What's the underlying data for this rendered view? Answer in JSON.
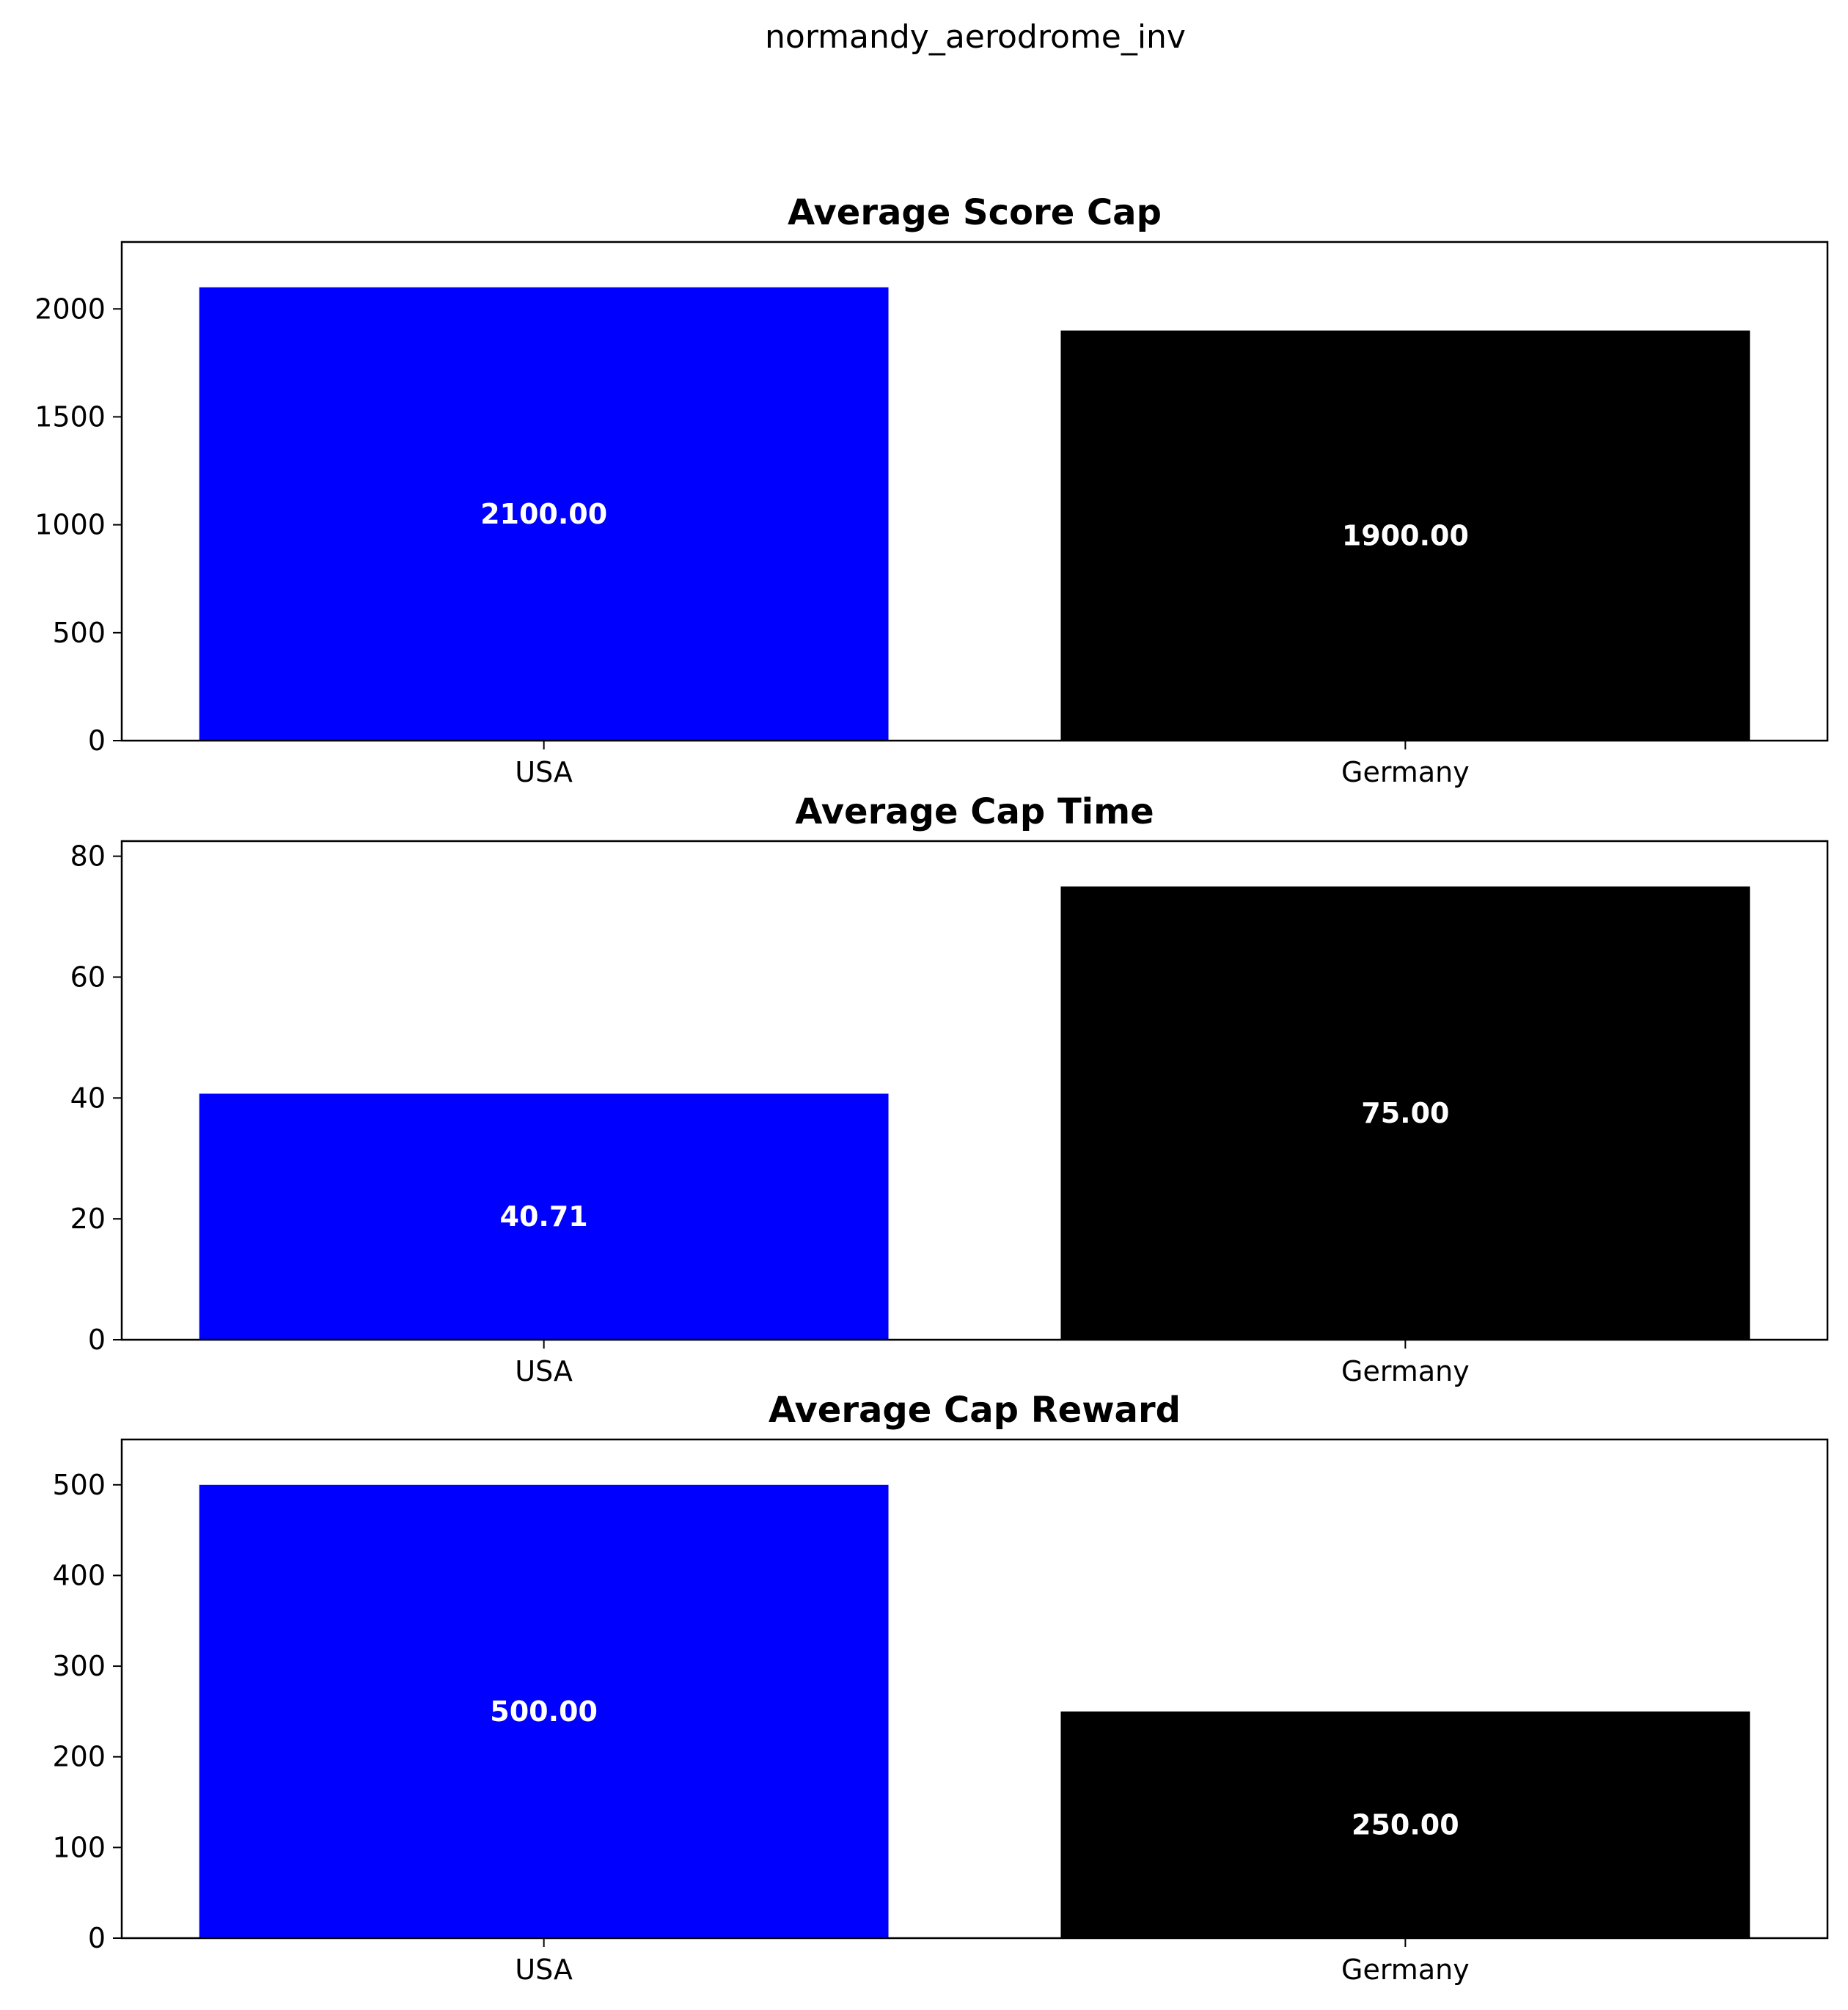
{
  "figure_title": "normandy_aerodrome_inv",
  "chart_data": [
    {
      "type": "bar",
      "title": "Average Score Cap",
      "xlabel": "",
      "ylabel": "",
      "categories": [
        "USA",
        "Germany"
      ],
      "values": [
        2100.0,
        1900.0
      ],
      "value_labels": [
        "2100.00",
        "1900.00"
      ],
      "colors": [
        "#0000ff",
        "#000000"
      ],
      "ylim": [
        0,
        2310
      ],
      "yticks": [
        0,
        500,
        1000,
        1500,
        2000
      ],
      "grid": false
    },
    {
      "type": "bar",
      "title": "Average Cap Time",
      "xlabel": "",
      "ylabel": "",
      "categories": [
        "USA",
        "Germany"
      ],
      "values": [
        40.71,
        75.0
      ],
      "value_labels": [
        "40.71",
        "75.00"
      ],
      "colors": [
        "#0000ff",
        "#000000"
      ],
      "ylim": [
        0,
        82.5
      ],
      "yticks": [
        0,
        20,
        40,
        60,
        80
      ],
      "grid": false
    },
    {
      "type": "bar",
      "title": "Average Cap Reward",
      "xlabel": "",
      "ylabel": "",
      "categories": [
        "USA",
        "Germany"
      ],
      "values": [
        500.0,
        250.0
      ],
      "value_labels": [
        "500.00",
        "250.00"
      ],
      "colors": [
        "#0000ff",
        "#000000"
      ],
      "ylim": [
        0,
        550
      ],
      "yticks": [
        0,
        100,
        200,
        300,
        400,
        500
      ],
      "grid": false
    }
  ]
}
